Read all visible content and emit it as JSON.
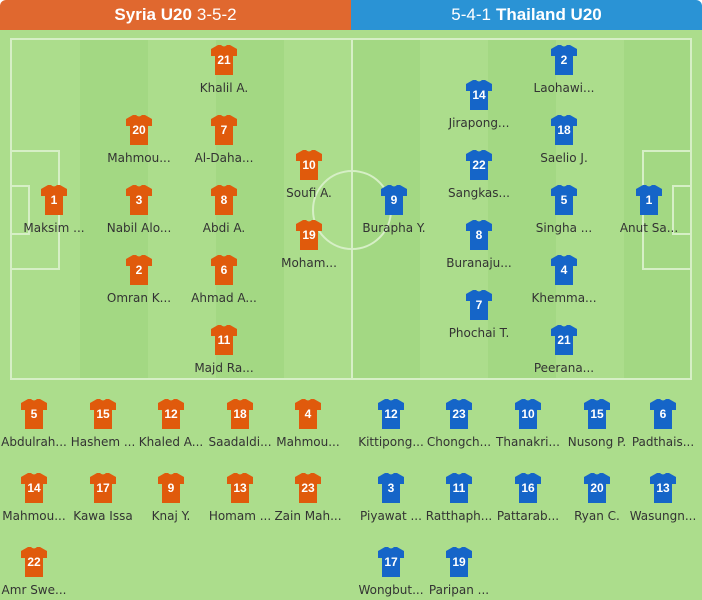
{
  "home": {
    "name": "Syria U20",
    "formation": "3-5-2",
    "color": "#e05a0c",
    "starters": [
      {
        "number": "21",
        "name": "Khalil A."
      },
      {
        "number": "20",
        "name": "Mahmou..."
      },
      {
        "number": "7",
        "name": "Al-Daha..."
      },
      {
        "number": "10",
        "name": "Soufi A."
      },
      {
        "number": "1",
        "name": "Maksim ..."
      },
      {
        "number": "3",
        "name": "Nabil Alo..."
      },
      {
        "number": "8",
        "name": "Abdi A."
      },
      {
        "number": "19",
        "name": "Moham..."
      },
      {
        "number": "2",
        "name": "Omran K..."
      },
      {
        "number": "6",
        "name": "Ahmad A..."
      },
      {
        "number": "11",
        "name": "Majd Ra..."
      }
    ],
    "subs": [
      {
        "number": "5",
        "name": "Abdulrah..."
      },
      {
        "number": "15",
        "name": "Hashem ..."
      },
      {
        "number": "12",
        "name": "Khaled A..."
      },
      {
        "number": "18",
        "name": "Saadaldi..."
      },
      {
        "number": "4",
        "name": "Mahmou..."
      },
      {
        "number": "14",
        "name": "Mahmou..."
      },
      {
        "number": "17",
        "name": "Kawa Issa"
      },
      {
        "number": "9",
        "name": "Knaj Y."
      },
      {
        "number": "13",
        "name": "Homam ..."
      },
      {
        "number": "23",
        "name": "Zain Mah..."
      },
      {
        "number": "22",
        "name": "Amr Swe..."
      }
    ]
  },
  "away": {
    "name": "Thailand U20",
    "formation": "5-4-1",
    "color": "#1565c8",
    "starters": [
      {
        "number": "2",
        "name": "Laohawi..."
      },
      {
        "number": "14",
        "name": "Jirapong..."
      },
      {
        "number": "18",
        "name": "Saelio J."
      },
      {
        "number": "22",
        "name": "Sangkas..."
      },
      {
        "number": "9",
        "name": "Burapha Y."
      },
      {
        "number": "5",
        "name": "Singha ..."
      },
      {
        "number": "1",
        "name": "Anut Sa..."
      },
      {
        "number": "8",
        "name": "Buranaju..."
      },
      {
        "number": "4",
        "name": "Khemma..."
      },
      {
        "number": "7",
        "name": "Phochai T."
      },
      {
        "number": "21",
        "name": "Peerana..."
      }
    ],
    "subs": [
      {
        "number": "12",
        "name": "Kittipong..."
      },
      {
        "number": "23",
        "name": "Chongch..."
      },
      {
        "number": "10",
        "name": "Thanakri..."
      },
      {
        "number": "15",
        "name": "Nusong P."
      },
      {
        "number": "6",
        "name": "Padthais..."
      },
      {
        "number": "3",
        "name": "Piyawat ..."
      },
      {
        "number": "11",
        "name": "Ratthaph..."
      },
      {
        "number": "16",
        "name": "Pattarab..."
      },
      {
        "number": "20",
        "name": "Ryan C."
      },
      {
        "number": "13",
        "name": "Wasungn..."
      },
      {
        "number": "17",
        "name": "Wongbut..."
      },
      {
        "number": "19",
        "name": "Paripan ..."
      }
    ]
  }
}
